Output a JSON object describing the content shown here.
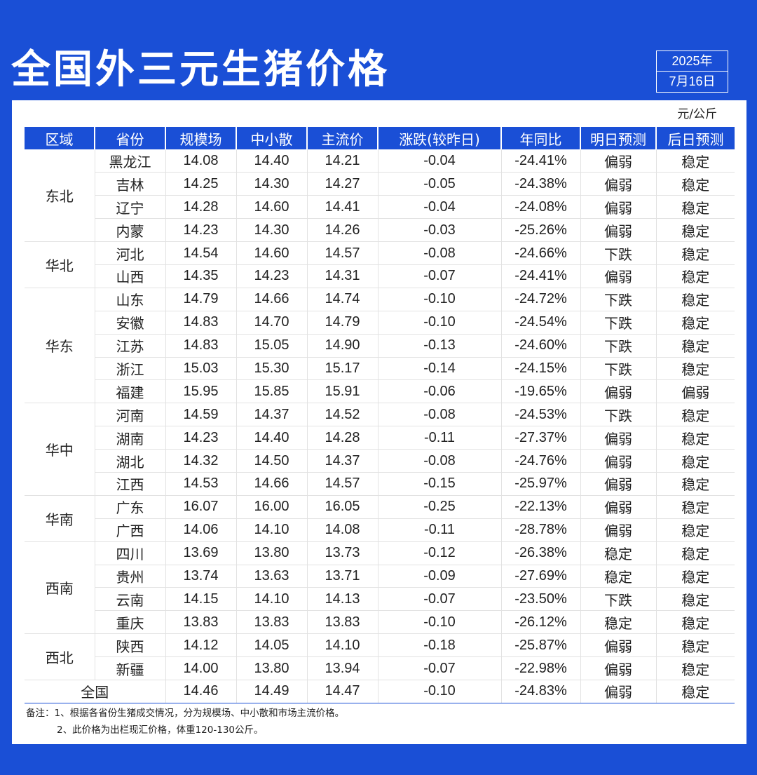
{
  "title": "全国外三元生猪价格",
  "date": {
    "year": "2025年",
    "day": "7月16日"
  },
  "unit": "元/公斤",
  "headers": [
    "区域",
    "省份",
    "规模场",
    "中小散",
    "主流价",
    "涨跌(较昨日)",
    "年同比",
    "明日预测",
    "后日预测"
  ],
  "regions": [
    {
      "name": "东北",
      "rows": [
        {
          "province": "黑龙江",
          "large": "14.08",
          "small": "14.40",
          "main": "14.21",
          "change": "-0.04",
          "yoy": "-24.41%",
          "tomorrow": "偏弱",
          "dayafter": "稳定"
        },
        {
          "province": "吉林",
          "large": "14.25",
          "small": "14.30",
          "main": "14.27",
          "change": "-0.05",
          "yoy": "-24.38%",
          "tomorrow": "偏弱",
          "dayafter": "稳定"
        },
        {
          "province": "辽宁",
          "large": "14.28",
          "small": "14.60",
          "main": "14.41",
          "change": "-0.04",
          "yoy": "-24.08%",
          "tomorrow": "偏弱",
          "dayafter": "稳定"
        },
        {
          "province": "内蒙",
          "large": "14.23",
          "small": "14.30",
          "main": "14.26",
          "change": "-0.03",
          "yoy": "-25.26%",
          "tomorrow": "偏弱",
          "dayafter": "稳定"
        }
      ]
    },
    {
      "name": "华北",
      "rows": [
        {
          "province": "河北",
          "large": "14.54",
          "small": "14.60",
          "main": "14.57",
          "change": "-0.08",
          "yoy": "-24.66%",
          "tomorrow": "下跌",
          "dayafter": "稳定"
        },
        {
          "province": "山西",
          "large": "14.35",
          "small": "14.23",
          "main": "14.31",
          "change": "-0.07",
          "yoy": "-24.41%",
          "tomorrow": "偏弱",
          "dayafter": "稳定"
        }
      ]
    },
    {
      "name": "华东",
      "rows": [
        {
          "province": "山东",
          "large": "14.79",
          "small": "14.66",
          "main": "14.74",
          "change": "-0.10",
          "yoy": "-24.72%",
          "tomorrow": "下跌",
          "dayafter": "稳定"
        },
        {
          "province": "安徽",
          "large": "14.83",
          "small": "14.70",
          "main": "14.79",
          "change": "-0.10",
          "yoy": "-24.54%",
          "tomorrow": "下跌",
          "dayafter": "稳定"
        },
        {
          "province": "江苏",
          "large": "14.83",
          "small": "15.05",
          "main": "14.90",
          "change": "-0.13",
          "yoy": "-24.60%",
          "tomorrow": "下跌",
          "dayafter": "稳定"
        },
        {
          "province": "浙江",
          "large": "15.03",
          "small": "15.30",
          "main": "15.17",
          "change": "-0.14",
          "yoy": "-24.15%",
          "tomorrow": "下跌",
          "dayafter": "稳定"
        },
        {
          "province": "福建",
          "large": "15.95",
          "small": "15.85",
          "main": "15.91",
          "change": "-0.06",
          "yoy": "-19.65%",
          "tomorrow": "偏弱",
          "dayafter": "偏弱"
        }
      ]
    },
    {
      "name": "华中",
      "rows": [
        {
          "province": "河南",
          "large": "14.59",
          "small": "14.37",
          "main": "14.52",
          "change": "-0.08",
          "yoy": "-24.53%",
          "tomorrow": "下跌",
          "dayafter": "稳定"
        },
        {
          "province": "湖南",
          "large": "14.23",
          "small": "14.40",
          "main": "14.28",
          "change": "-0.11",
          "yoy": "-27.37%",
          "tomorrow": "偏弱",
          "dayafter": "稳定"
        },
        {
          "province": "湖北",
          "large": "14.32",
          "small": "14.50",
          "main": "14.37",
          "change": "-0.08",
          "yoy": "-24.76%",
          "tomorrow": "偏弱",
          "dayafter": "稳定"
        },
        {
          "province": "江西",
          "large": "14.53",
          "small": "14.66",
          "main": "14.57",
          "change": "-0.15",
          "yoy": "-25.97%",
          "tomorrow": "偏弱",
          "dayafter": "稳定"
        }
      ]
    },
    {
      "name": "华南",
      "rows": [
        {
          "province": "广东",
          "large": "16.07",
          "small": "16.00",
          "main": "16.05",
          "change": "-0.25",
          "yoy": "-22.13%",
          "tomorrow": "偏弱",
          "dayafter": "稳定"
        },
        {
          "province": "广西",
          "large": "14.06",
          "small": "14.10",
          "main": "14.08",
          "change": "-0.11",
          "yoy": "-28.78%",
          "tomorrow": "偏弱",
          "dayafter": "稳定"
        }
      ]
    },
    {
      "name": "西南",
      "rows": [
        {
          "province": "四川",
          "large": "13.69",
          "small": "13.80",
          "main": "13.73",
          "change": "-0.12",
          "yoy": "-26.38%",
          "tomorrow": "稳定",
          "dayafter": "稳定"
        },
        {
          "province": "贵州",
          "large": "13.74",
          "small": "13.63",
          "main": "13.71",
          "change": "-0.09",
          "yoy": "-27.69%",
          "tomorrow": "稳定",
          "dayafter": "稳定"
        },
        {
          "province": "云南",
          "large": "14.15",
          "small": "14.10",
          "main": "14.13",
          "change": "-0.07",
          "yoy": "-23.50%",
          "tomorrow": "下跌",
          "dayafter": "稳定"
        },
        {
          "province": "重庆",
          "large": "13.83",
          "small": "13.83",
          "main": "13.83",
          "change": "-0.10",
          "yoy": "-26.12%",
          "tomorrow": "稳定",
          "dayafter": "稳定"
        }
      ]
    },
    {
      "name": "西北",
      "rows": [
        {
          "province": "陕西",
          "large": "14.12",
          "small": "14.05",
          "main": "14.10",
          "change": "-0.18",
          "yoy": "-25.87%",
          "tomorrow": "偏弱",
          "dayafter": "稳定"
        },
        {
          "province": "新疆",
          "large": "14.00",
          "small": "13.80",
          "main": "13.94",
          "change": "-0.07",
          "yoy": "-22.98%",
          "tomorrow": "偏弱",
          "dayafter": "稳定"
        }
      ]
    }
  ],
  "total": {
    "label": "全国",
    "large": "14.46",
    "small": "14.49",
    "main": "14.47",
    "change": "-0.10",
    "yoy": "-24.83%",
    "tomorrow": "偏弱",
    "dayafter": "稳定"
  },
  "notes": {
    "line1": "备注：1、根据各省份生猪成交情况，分为规模场、中小散和市场主流价格。",
    "line2": "2、此价格为出栏现汇价格，体重120-130公斤。"
  },
  "colors": {
    "brand_blue": "#1a4fd6",
    "forecast_green": "#1aa85a",
    "text": "#222222"
  }
}
